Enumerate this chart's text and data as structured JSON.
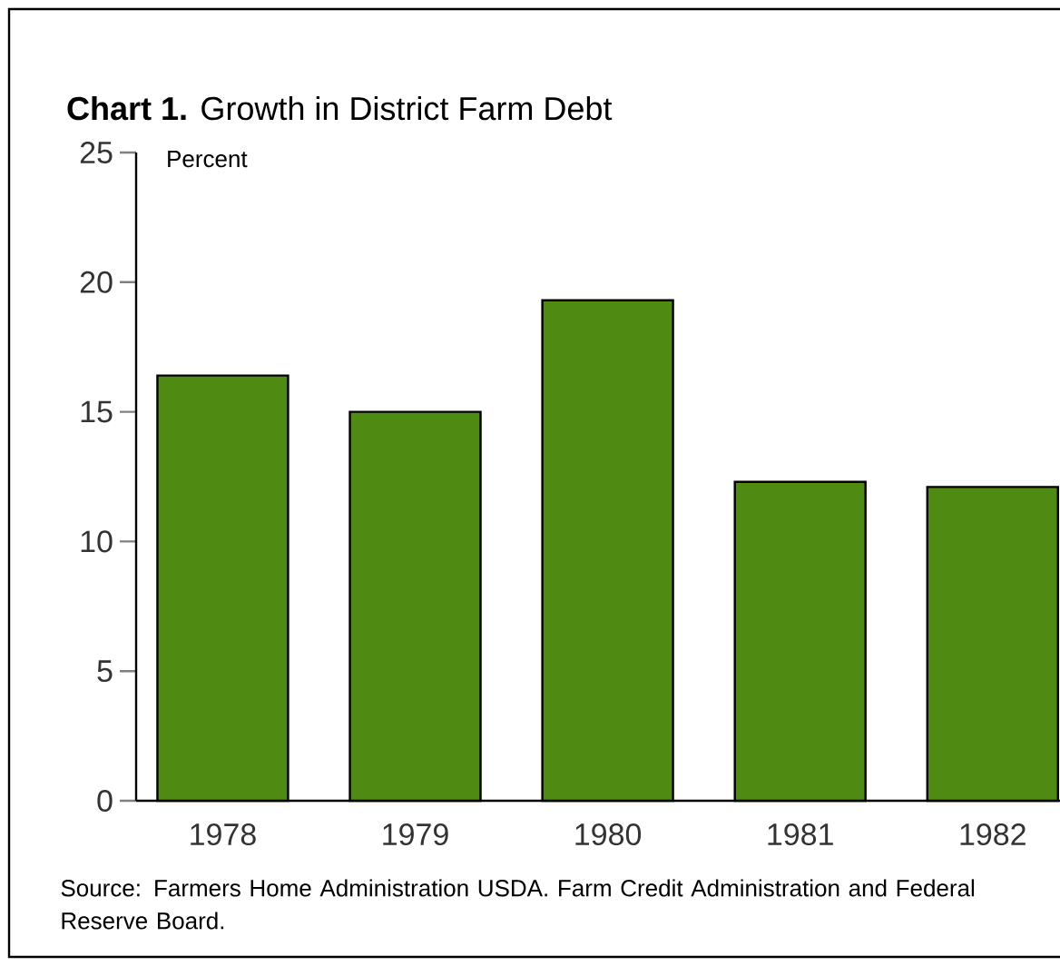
{
  "chart_data": {
    "type": "bar",
    "title": "**Chart 1.** Growth in District Farm Debt",
    "ylabel": "Percent",
    "categories": [
      "1978",
      "1979",
      "1980",
      "1981",
      "1982"
    ],
    "values": [
      16.4,
      15.0,
      19.3,
      12.3,
      12.1
    ],
    "color": "#4f8a12",
    "ylim": [
      0,
      25
    ],
    "yticks": [
      0,
      5,
      10,
      15,
      20,
      25
    ],
    "grid": false,
    "annotations": [
      "Source: Farmers Home Administration USDA. Farm Credit Administration and Federal Reserve Board."
    ]
  }
}
